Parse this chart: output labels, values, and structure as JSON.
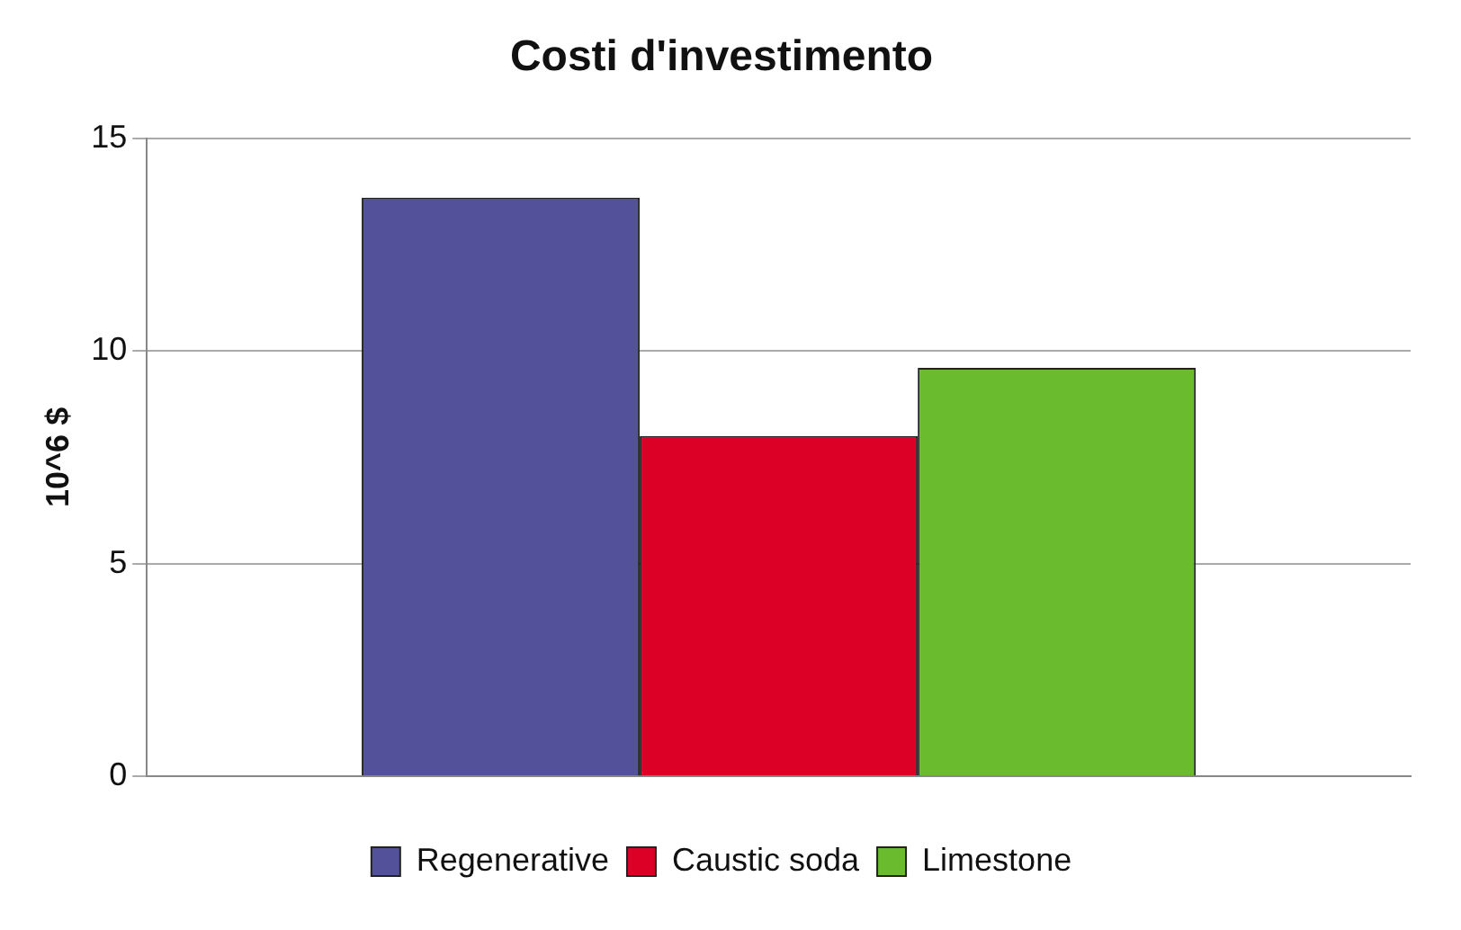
{
  "chart_data": {
    "type": "bar",
    "title": "Costi d'investimento",
    "ylabel": "10^6 $",
    "categories": [
      null
    ],
    "series": [
      {
        "name": "Regenerative",
        "color": "#52519a",
        "values": [
          13.6
        ]
      },
      {
        "name": "Caustic soda",
        "color": "#dc0026",
        "values": [
          8.0
        ]
      },
      {
        "name": "Limestone",
        "color": "#6abb2e",
        "values": [
          9.6
        ]
      }
    ],
    "ylim": [
      0,
      15
    ],
    "yticks": [
      0,
      5,
      10,
      15
    ],
    "grid": "y",
    "legend": "bottom"
  }
}
